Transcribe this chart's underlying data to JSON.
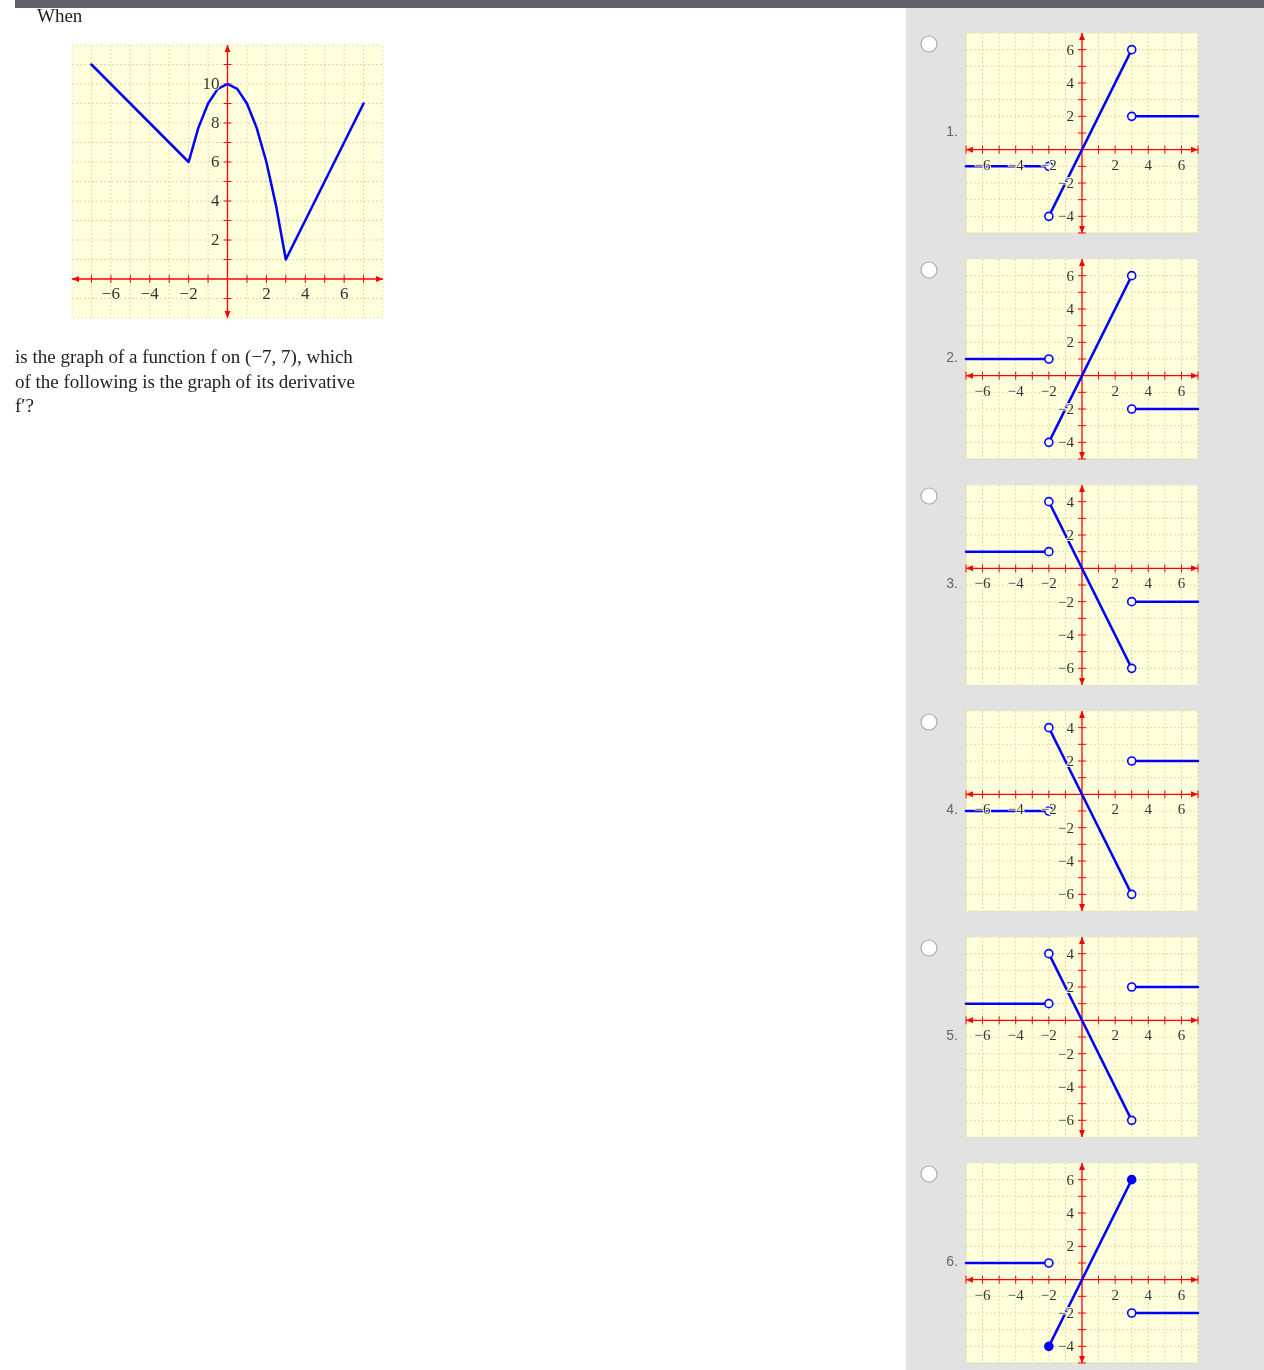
{
  "chart_data": [
    {
      "type": "line",
      "title": "When",
      "annotations": [
        "is the graph of a function f on (−7, 7), which",
        "of the following is the graph of its derivative",
        "f′?"
      ],
      "xlim": [
        -8,
        8
      ],
      "ylim": [
        -2,
        12
      ],
      "grid": true,
      "xticks": [
        {
          "value": -7,
          "label": null
        },
        {
          "value": -6,
          "label": "−6"
        },
        {
          "value": -5,
          "label": null
        },
        {
          "value": -4,
          "label": "−4"
        },
        {
          "value": -3,
          "label": null
        },
        {
          "value": -2,
          "label": "−2"
        },
        {
          "value": -1,
          "label": null
        },
        {
          "value": 1,
          "label": null
        },
        2,
        {
          "value": 3,
          "label": null
        },
        4,
        {
          "value": 5,
          "label": null
        },
        6,
        {
          "value": 7,
          "label": null
        }
      ],
      "yticks": [
        {
          "value": -1,
          "label": null
        },
        {
          "value": 1,
          "label": null
        },
        2,
        {
          "value": 3,
          "label": null
        },
        4,
        {
          "value": 5,
          "label": null
        },
        6,
        {
          "value": 7,
          "label": null
        },
        8,
        {
          "value": 9,
          "label": null
        },
        10,
        {
          "value": 11,
          "label": null
        }
      ],
      "series": [
        {
          "type": "line",
          "color": "#0000ff",
          "marker": "none",
          "x": [
            -7,
            -2,
            -1.5,
            -1,
            -0.5,
            0,
            0.5,
            1,
            1.5,
            2,
            2.5,
            3,
            7
          ],
          "values": [
            11,
            6,
            7.75,
            9,
            9.75,
            10,
            9.75,
            9,
            7.75,
            6,
            3.75,
            1,
            9
          ]
        }
      ]
    },
    {
      "type": "line",
      "title": "1.",
      "xlim": [
        -7,
        7
      ],
      "ylim": [
        -5,
        7
      ],
      "grid": true,
      "xticks": [
        {
          "value": -7,
          "label": null
        },
        {
          "value": -6,
          "label": "−6"
        },
        {
          "value": -5,
          "label": null
        },
        {
          "value": -4,
          "label": "−4"
        },
        {
          "value": -3,
          "label": null
        },
        {
          "value": -2,
          "label": "−2"
        },
        {
          "value": -1,
          "label": null
        },
        {
          "value": 1,
          "label": null
        },
        2,
        {
          "value": 3,
          "label": null
        },
        4,
        {
          "value": 5,
          "label": null
        },
        6,
        {
          "value": 7,
          "label": null
        }
      ],
      "yticks": [
        {
          "value": -5,
          "label": null
        },
        {
          "value": -4,
          "label": "−4"
        },
        {
          "value": -3,
          "label": null
        },
        {
          "value": -2,
          "label": "−2"
        },
        {
          "value": -1,
          "label": null
        },
        {
          "value": 1,
          "label": null
        },
        2,
        {
          "value": 3,
          "label": null
        },
        4,
        {
          "value": 5,
          "label": null
        },
        6
      ],
      "series": [
        {
          "type": "line",
          "color": "#0000ff",
          "marker": "none",
          "x": [
            -7,
            -2
          ],
          "values": [
            -1,
            -1
          ]
        },
        {
          "type": "line",
          "color": "#0000ff",
          "marker": "none",
          "x": [
            -2,
            3
          ],
          "values": [
            -4,
            6
          ]
        },
        {
          "type": "line",
          "color": "#0000ff",
          "marker": "none",
          "x": [
            3,
            7
          ],
          "values": [
            2,
            2
          ]
        },
        {
          "type": "scatter",
          "color": "#ffffff",
          "marker": "circle",
          "x": [
            -2,
            -2,
            3,
            3
          ],
          "values": [
            -1,
            -4,
            6,
            2
          ]
        }
      ]
    },
    {
      "type": "line",
      "title": "2.",
      "xlim": [
        -7,
        7
      ],
      "ylim": [
        -5,
        7
      ],
      "grid": true,
      "xticks": [
        {
          "value": -7,
          "label": null
        },
        {
          "value": -6,
          "label": "−6"
        },
        {
          "value": -5,
          "label": null
        },
        {
          "value": -4,
          "label": "−4"
        },
        {
          "value": -3,
          "label": null
        },
        {
          "value": -2,
          "label": "−2"
        },
        {
          "value": -1,
          "label": null
        },
        {
          "value": 1,
          "label": null
        },
        2,
        {
          "value": 3,
          "label": null
        },
        4,
        {
          "value": 5,
          "label": null
        },
        6,
        {
          "value": 7,
          "label": null
        }
      ],
      "yticks": [
        {
          "value": -5,
          "label": null
        },
        {
          "value": -4,
          "label": "−4"
        },
        {
          "value": -3,
          "label": null
        },
        {
          "value": -2,
          "label": "−2"
        },
        {
          "value": -1,
          "label": null
        },
        {
          "value": 1,
          "label": null
        },
        2,
        {
          "value": 3,
          "label": null
        },
        4,
        {
          "value": 5,
          "label": null
        },
        6
      ],
      "series": [
        {
          "type": "line",
          "color": "#0000ff",
          "marker": "none",
          "x": [
            -7,
            -2
          ],
          "values": [
            1,
            1
          ]
        },
        {
          "type": "line",
          "color": "#0000ff",
          "marker": "none",
          "x": [
            -2,
            3
          ],
          "values": [
            -4,
            6
          ]
        },
        {
          "type": "line",
          "color": "#0000ff",
          "marker": "none",
          "x": [
            3,
            7
          ],
          "values": [
            -2,
            -2
          ]
        },
        {
          "type": "scatter",
          "color": "#ffffff",
          "marker": "circle",
          "x": [
            -2,
            -2,
            3,
            3
          ],
          "values": [
            1,
            -4,
            6,
            -2
          ]
        }
      ]
    },
    {
      "type": "line",
      "title": "3.",
      "xlim": [
        -7,
        7
      ],
      "ylim": [
        -7,
        5
      ],
      "grid": true,
      "xticks": [
        {
          "value": -7,
          "label": null
        },
        {
          "value": -6,
          "label": "−6"
        },
        {
          "value": -5,
          "label": null
        },
        {
          "value": -4,
          "label": "−4"
        },
        {
          "value": -3,
          "label": null
        },
        {
          "value": -2,
          "label": "−2"
        },
        {
          "value": -1,
          "label": null
        },
        {
          "value": 1,
          "label": null
        },
        2,
        {
          "value": 3,
          "label": null
        },
        4,
        {
          "value": 5,
          "label": null
        },
        6,
        {
          "value": 7,
          "label": null
        }
      ],
      "yticks": [
        {
          "value": -6,
          "label": "−6"
        },
        {
          "value": -5,
          "label": null
        },
        {
          "value": -4,
          "label": "−4"
        },
        {
          "value": -3,
          "label": null
        },
        {
          "value": -2,
          "label": "−2"
        },
        {
          "value": -1,
          "label": null
        },
        {
          "value": 1,
          "label": null
        },
        2,
        {
          "value": 3,
          "label": null
        },
        4
      ],
      "series": [
        {
          "type": "line",
          "color": "#0000ff",
          "marker": "none",
          "x": [
            -7,
            -2
          ],
          "values": [
            1,
            1
          ]
        },
        {
          "type": "line",
          "color": "#0000ff",
          "marker": "none",
          "x": [
            -2,
            3
          ],
          "values": [
            4,
            -6
          ]
        },
        {
          "type": "line",
          "color": "#0000ff",
          "marker": "none",
          "x": [
            3,
            7
          ],
          "values": [
            -2,
            -2
          ]
        },
        {
          "type": "scatter",
          "color": "#ffffff",
          "marker": "circle",
          "x": [
            -2,
            -2,
            3,
            3
          ],
          "values": [
            1,
            4,
            -6,
            -2
          ]
        }
      ]
    },
    {
      "type": "line",
      "title": "4.",
      "xlim": [
        -7,
        7
      ],
      "ylim": [
        -7,
        5
      ],
      "grid": true,
      "xticks": [
        {
          "value": -7,
          "label": null
        },
        {
          "value": -6,
          "label": "−6"
        },
        {
          "value": -5,
          "label": null
        },
        {
          "value": -4,
          "label": "−4"
        },
        {
          "value": -3,
          "label": null
        },
        {
          "value": -2,
          "label": "−2"
        },
        {
          "value": -1,
          "label": null
        },
        {
          "value": 1,
          "label": null
        },
        2,
        {
          "value": 3,
          "label": null
        },
        4,
        {
          "value": 5,
          "label": null
        },
        6,
        {
          "value": 7,
          "label": null
        }
      ],
      "yticks": [
        {
          "value": -6,
          "label": "−6"
        },
        {
          "value": -5,
          "label": null
        },
        {
          "value": -4,
          "label": "−4"
        },
        {
          "value": -3,
          "label": null
        },
        {
          "value": -2,
          "label": "−2"
        },
        {
          "value": -1,
          "label": null
        },
        {
          "value": 1,
          "label": null
        },
        2,
        {
          "value": 3,
          "label": null
        },
        4
      ],
      "series": [
        {
          "type": "line",
          "color": "#0000ff",
          "marker": "none",
          "x": [
            -7,
            -2
          ],
          "values": [
            -1,
            -1
          ]
        },
        {
          "type": "line",
          "color": "#0000ff",
          "marker": "none",
          "x": [
            -2,
            3
          ],
          "values": [
            4,
            -6
          ]
        },
        {
          "type": "line",
          "color": "#0000ff",
          "marker": "none",
          "x": [
            3,
            7
          ],
          "values": [
            2,
            2
          ]
        },
        {
          "type": "scatter",
          "color": "#ffffff",
          "marker": "circle",
          "x": [
            -2,
            -2,
            3,
            3
          ],
          "values": [
            -1,
            4,
            -6,
            2
          ]
        }
      ]
    },
    {
      "type": "line",
      "title": "5.",
      "xlim": [
        -7,
        7
      ],
      "ylim": [
        -7,
        5
      ],
      "grid": true,
      "xticks": [
        {
          "value": -7,
          "label": null
        },
        {
          "value": -6,
          "label": "−6"
        },
        {
          "value": -5,
          "label": null
        },
        {
          "value": -4,
          "label": "−4"
        },
        {
          "value": -3,
          "label": null
        },
        {
          "value": -2,
          "label": "−2"
        },
        {
          "value": -1,
          "label": null
        },
        {
          "value": 1,
          "label": null
        },
        2,
        {
          "value": 3,
          "label": null
        },
        4,
        {
          "value": 5,
          "label": null
        },
        6,
        {
          "value": 7,
          "label": null
        }
      ],
      "yticks": [
        {
          "value": -6,
          "label": "−6"
        },
        {
          "value": -5,
          "label": null
        },
        {
          "value": -4,
          "label": "−4"
        },
        {
          "value": -3,
          "label": null
        },
        {
          "value": -2,
          "label": "−2"
        },
        {
          "value": -1,
          "label": null
        },
        {
          "value": 1,
          "label": null
        },
        2,
        {
          "value": 3,
          "label": null
        },
        4
      ],
      "series": [
        {
          "type": "line",
          "color": "#0000ff",
          "marker": "none",
          "x": [
            -7,
            -2
          ],
          "values": [
            1,
            1
          ]
        },
        {
          "type": "line",
          "color": "#0000ff",
          "marker": "none",
          "x": [
            -2,
            3
          ],
          "values": [
            4,
            -6
          ]
        },
        {
          "type": "line",
          "color": "#0000ff",
          "marker": "none",
          "x": [
            3,
            7
          ],
          "values": [
            2,
            2
          ]
        },
        {
          "type": "scatter",
          "color": "#ffffff",
          "marker": "circle",
          "x": [
            -2,
            -2,
            3,
            3
          ],
          "values": [
            1,
            4,
            -6,
            2
          ]
        }
      ]
    },
    {
      "type": "line",
      "title": "6.",
      "xlim": [
        -7,
        7
      ],
      "ylim": [
        -5,
        7
      ],
      "grid": true,
      "xticks": [
        {
          "value": -7,
          "label": null
        },
        {
          "value": -6,
          "label": "−6"
        },
        {
          "value": -5,
          "label": null
        },
        {
          "value": -4,
          "label": "−4"
        },
        {
          "value": -3,
          "label": null
        },
        {
          "value": -2,
          "label": "−2"
        },
        {
          "value": -1,
          "label": null
        },
        {
          "value": 1,
          "label": null
        },
        2,
        {
          "value": 3,
          "label": null
        },
        4,
        {
          "value": 5,
          "label": null
        },
        6,
        {
          "value": 7,
          "label": null
        }
      ],
      "yticks": [
        {
          "value": -5,
          "label": null
        },
        {
          "value": -4,
          "label": "−4"
        },
        {
          "value": -3,
          "label": null
        },
        {
          "value": -2,
          "label": "−2"
        },
        {
          "value": -1,
          "label": null
        },
        {
          "value": 1,
          "label": null
        },
        2,
        {
          "value": 3,
          "label": null
        },
        4,
        {
          "value": 5,
          "label": null
        },
        6
      ],
      "series": [
        {
          "type": "line",
          "color": "#0000ff",
          "marker": "none",
          "x": [
            -7,
            -2
          ],
          "values": [
            1,
            1
          ]
        },
        {
          "type": "line",
          "color": "#0000ff",
          "marker": "none",
          "x": [
            -2,
            3
          ],
          "values": [
            -4,
            6
          ]
        },
        {
          "type": "line",
          "color": "#0000ff",
          "marker": "none",
          "x": [
            3,
            7
          ],
          "values": [
            -2,
            -2
          ]
        },
        {
          "type": "scatter",
          "color": "#ffffff",
          "marker": "circle",
          "x": [
            -2,
            3
          ],
          "values": [
            1,
            -2
          ]
        },
        {
          "type": "scatter",
          "color": "#0000ff",
          "marker": "circle",
          "x": [
            -2,
            3
          ],
          "values": [
            -4,
            6
          ]
        }
      ]
    }
  ]
}
